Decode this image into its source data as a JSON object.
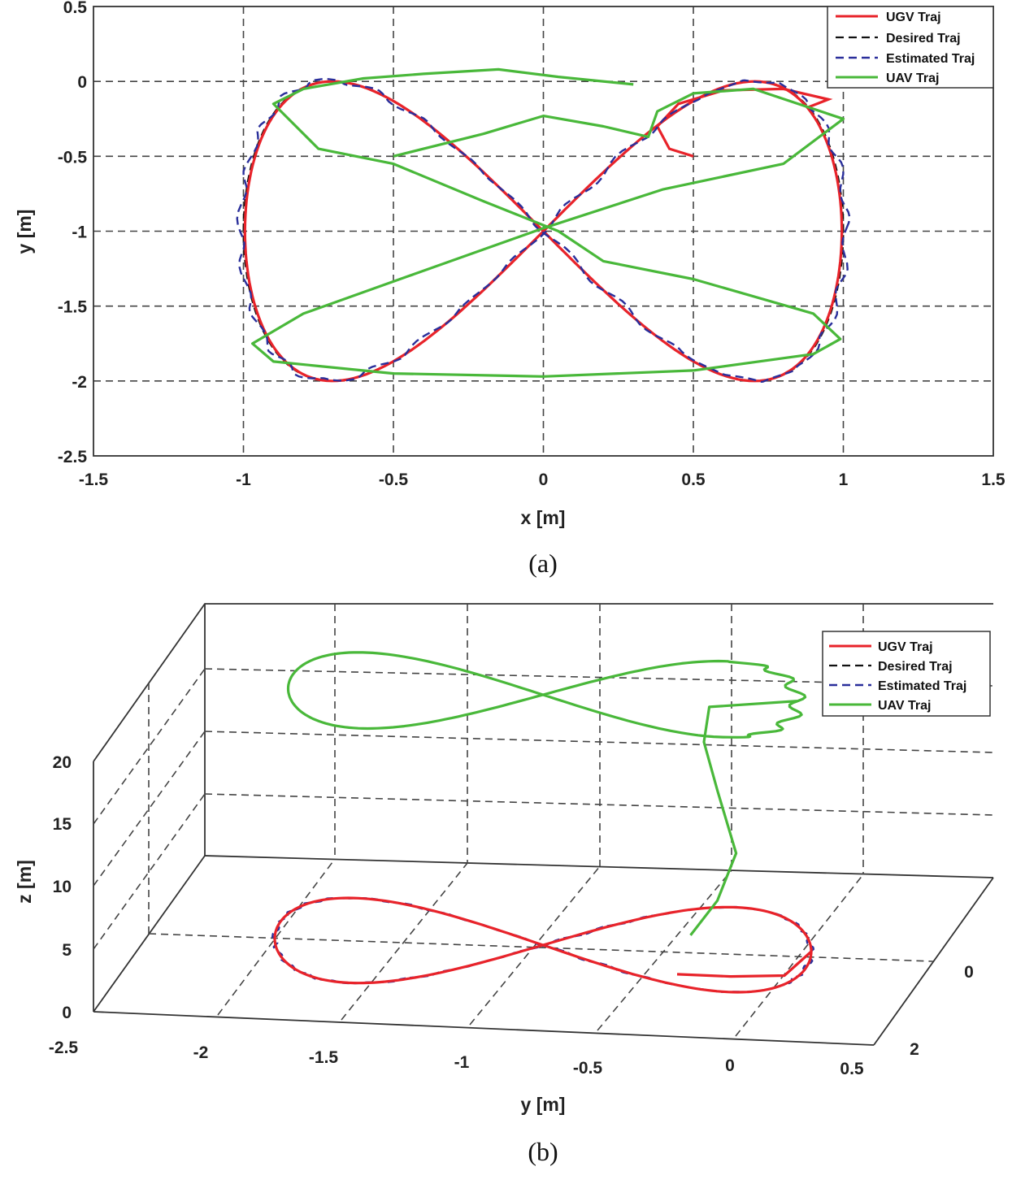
{
  "colors": {
    "ugv": "#e8232a",
    "desired": "#111111",
    "estimated": "#2a2f9b",
    "uav": "#49b83a"
  },
  "chart_data": [
    {
      "type": "line",
      "caption": "(a)",
      "xlabel": "x [m]",
      "ylabel": "y [m]",
      "xlim": [
        -1.5,
        1.5
      ],
      "ylim": [
        -2.5,
        0.5
      ],
      "xticks": [
        "-1.5",
        "-1",
        "-0.5",
        "0",
        "0.5",
        "1",
        "1.5"
      ],
      "yticks": [
        "-2.5",
        "-2",
        "-1.5",
        "-1",
        "-0.5",
        "0",
        "0.5"
      ],
      "grid": true,
      "legend_position": "top-right",
      "legend": [
        "UGV Traj",
        "Desired Traj",
        "Estimated Traj",
        "UAV Traj"
      ],
      "series": [
        {
          "name": "UGV Traj",
          "description": "figure-eight x = sin(t), y = -1 + sin(2t)/... spanning x -1..1, y -2..0, starting near (0.5, -0.5)"
        },
        {
          "name": "Desired Traj",
          "description": "reference figure-eight x in [-1, 1], y in [-2, 0]"
        },
        {
          "name": "Estimated Traj",
          "description": "dashed estimate closely following UGV"
        },
        {
          "name": "UAV Traj",
          "description": "starts at (-0.5, -0.5), loops toward (0.35, -0.37) then follows figure-eight"
        }
      ],
      "uav_path_points": [
        [
          -0.5,
          -0.5
        ],
        [
          -0.2,
          -0.35
        ],
        [
          0,
          -0.23
        ],
        [
          0.2,
          -0.3
        ],
        [
          0.35,
          -0.37
        ],
        [
          0.38,
          -0.2
        ],
        [
          0.5,
          -0.08
        ],
        [
          0.7,
          -0.05
        ],
        [
          1,
          -0.25
        ],
        [
          0.8,
          -0.55
        ],
        [
          0.4,
          -0.72
        ],
        [
          0,
          -0.98
        ],
        [
          -0.45,
          -1.3
        ],
        [
          -0.8,
          -1.55
        ],
        [
          -0.97,
          -1.75
        ],
        [
          -0.9,
          -1.87
        ],
        [
          -0.5,
          -1.95
        ],
        [
          0,
          -1.97
        ],
        [
          0.5,
          -1.93
        ],
        [
          0.9,
          -1.82
        ],
        [
          0.99,
          -1.72
        ],
        [
          0.9,
          -1.55
        ],
        [
          0.5,
          -1.32
        ],
        [
          0.2,
          -1.2
        ],
        [
          0.05,
          -1
        ],
        [
          -0.2,
          -0.8
        ],
        [
          -0.5,
          -0.55
        ],
        [
          -0.75,
          -0.45
        ],
        [
          -0.9,
          -0.15
        ],
        [
          -0.8,
          -0.05
        ],
        [
          -0.6,
          0.02
        ],
        [
          -0.4,
          0.05
        ],
        [
          -0.15,
          0.08
        ],
        [
          0.05,
          0.03
        ],
        [
          0.3,
          -0.02
        ]
      ]
    },
    {
      "type": "line",
      "caption": "(b)",
      "projection": "3d",
      "xlabel": "y [m]",
      "zlabel": "z [m]",
      "ylim_ticks": [
        "-2.5",
        "-2",
        "-1.5",
        "-1",
        "-0.5",
        "0",
        "0.5"
      ],
      "depth_ticks": [
        "0",
        "2"
      ],
      "zticks": [
        "0",
        "5",
        "10",
        "15",
        "20"
      ],
      "grid": true,
      "legend_position": "top-right",
      "legend": [
        "UGV Traj",
        "Desired Traj",
        "Estimated Traj",
        "UAV Traj"
      ],
      "ground_altitude": 0,
      "uav_altitude": 20
    }
  ]
}
